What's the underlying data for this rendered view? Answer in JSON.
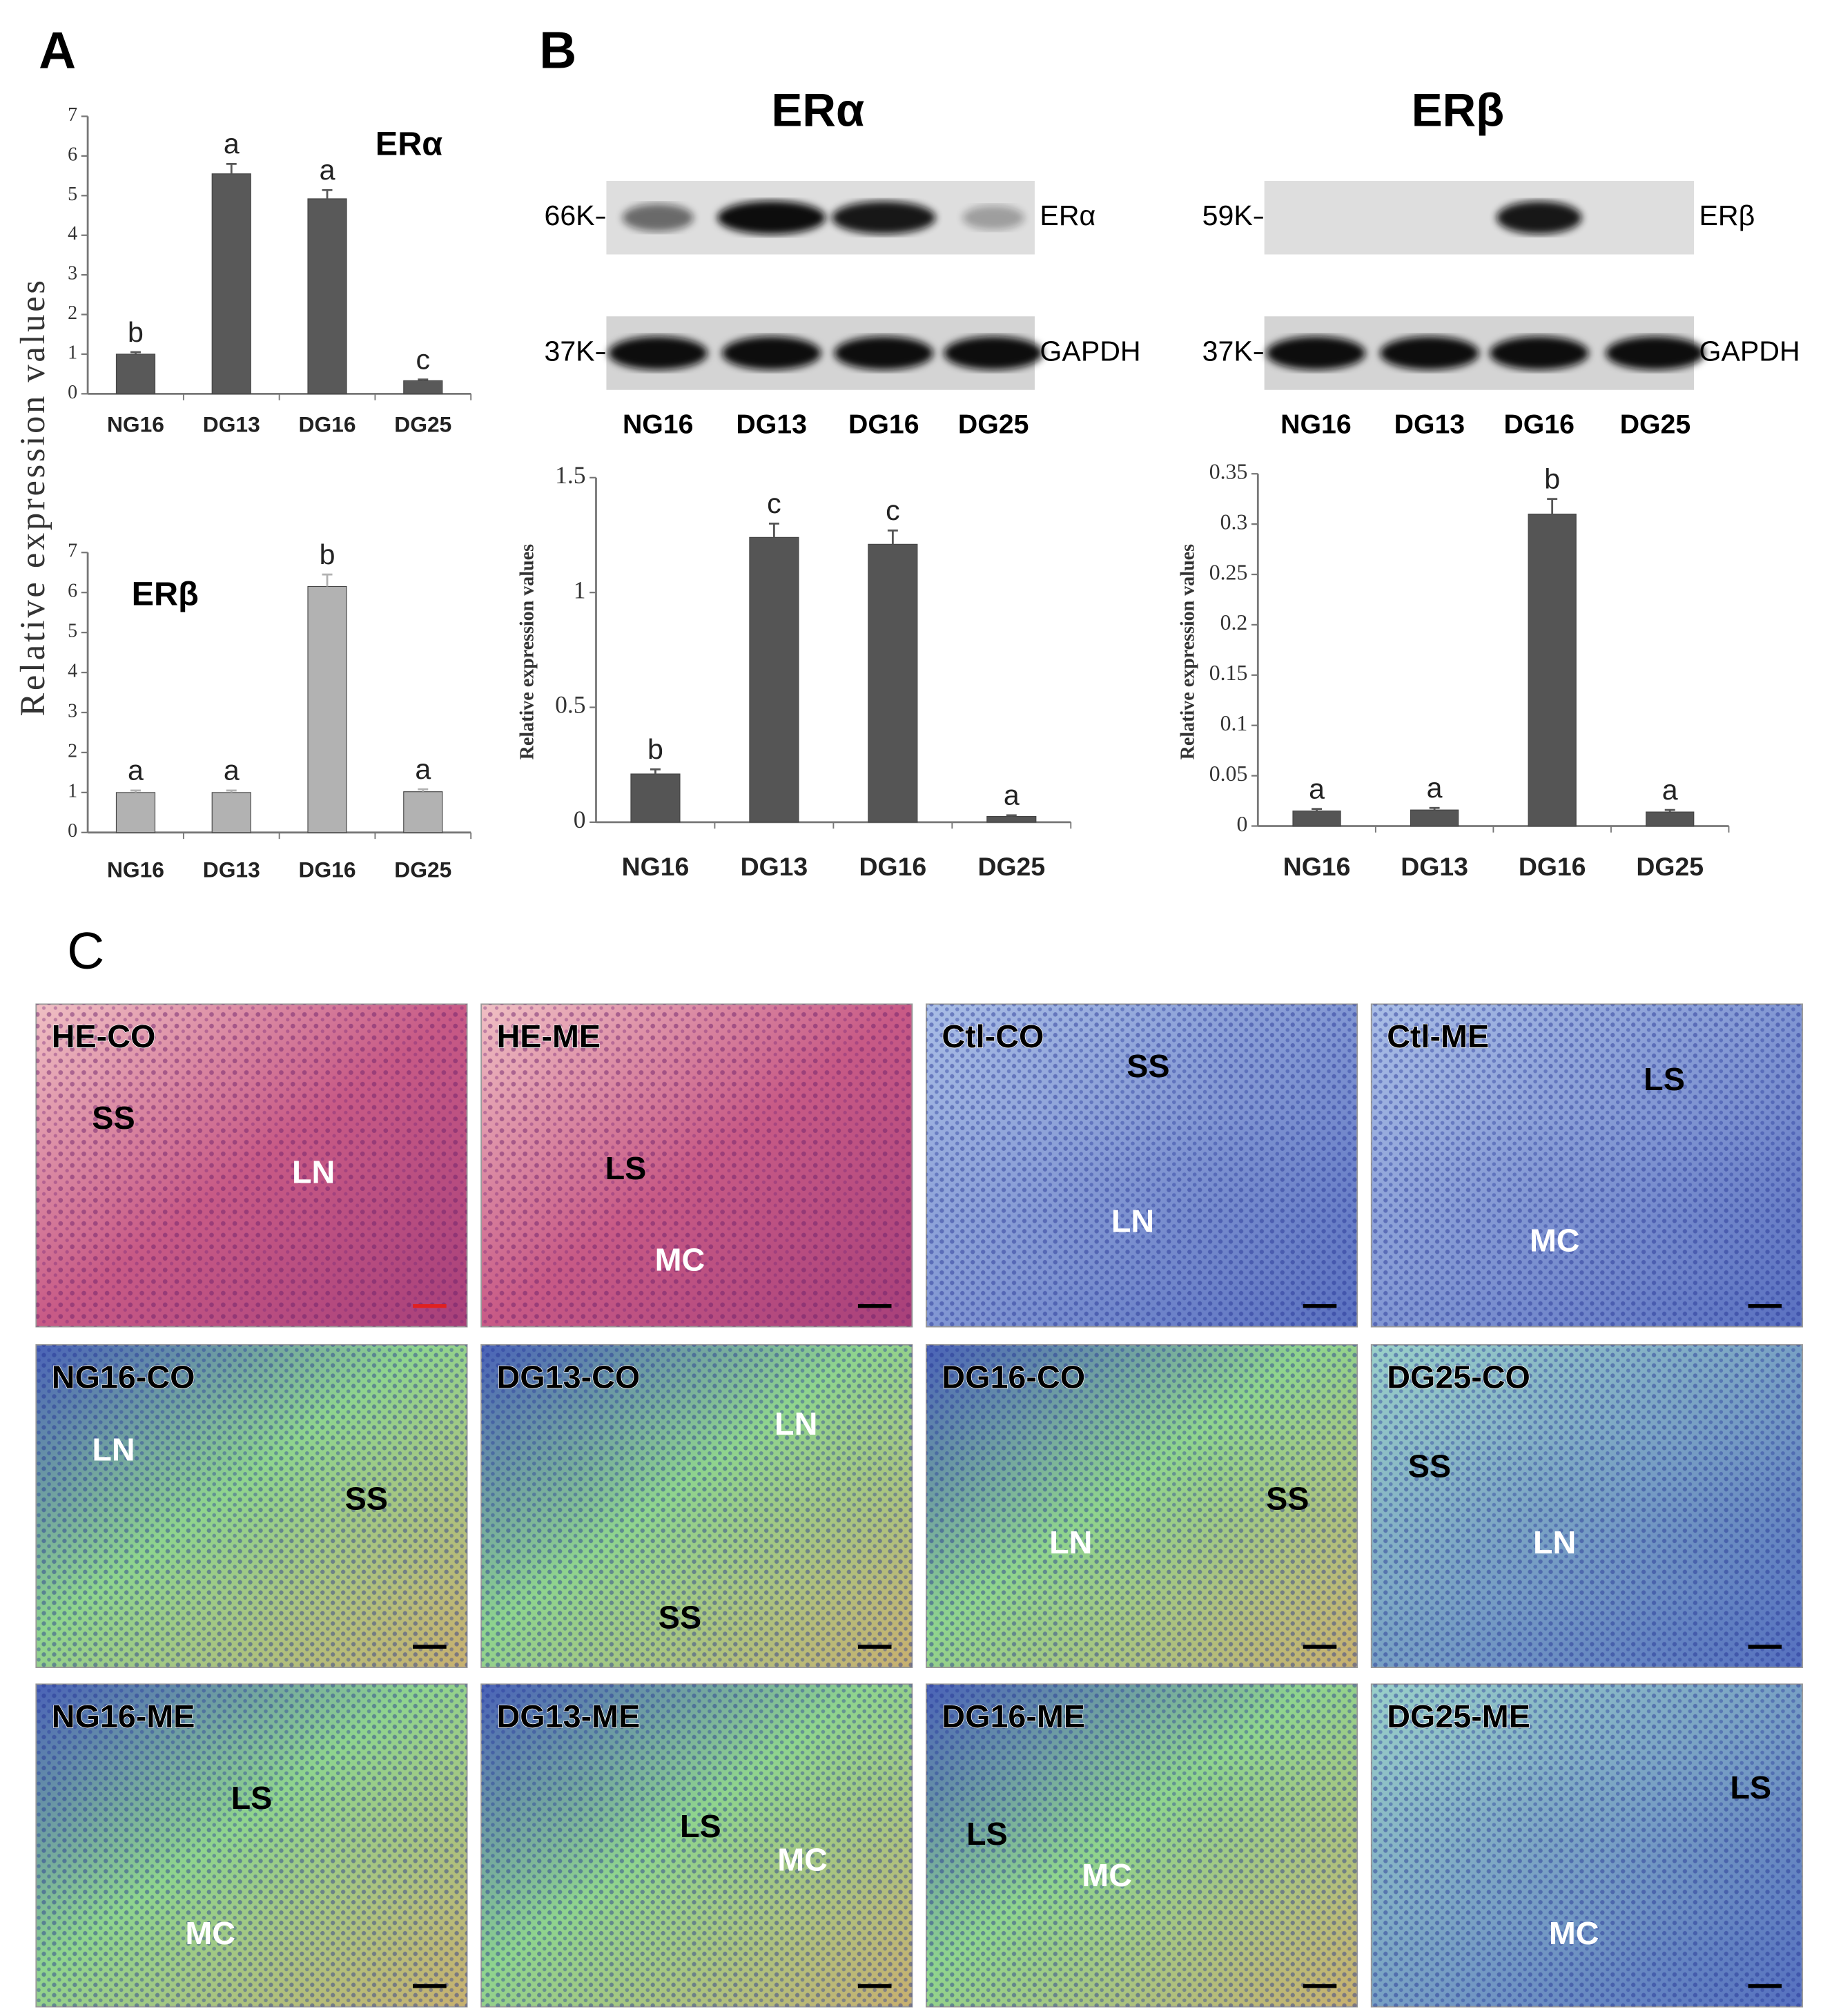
{
  "figure": {
    "panel_labels": [
      "A",
      "B",
      "C"
    ],
    "blots": [
      {
        "title": "ERα",
        "rows": [
          {
            "mw": "66K",
            "name": "ERα"
          },
          {
            "mw": "37K",
            "name": "GAPDH"
          }
        ],
        "lanes": [
          "NG16",
          "DG13",
          "DG16",
          "DG25"
        ]
      },
      {
        "title": "ERβ",
        "rows": [
          {
            "mw": "59K",
            "name": "ERβ"
          },
          {
            "mw": "37K",
            "name": "GAPDH"
          }
        ],
        "lanes": [
          "NG16",
          "DG13",
          "DG16",
          "DG25"
        ]
      }
    ],
    "histology": [
      {
        "label": "HE-CO",
        "regions": [
          "SS",
          "LN"
        ]
      },
      {
        "label": "HE-ME",
        "regions": [
          "LS",
          "MC"
        ]
      },
      {
        "label": "Ctl-CO",
        "regions": [
          "SS",
          "LN"
        ]
      },
      {
        "label": "Ctl-ME",
        "regions": [
          "LS",
          "MC"
        ]
      },
      {
        "label": "NG16-CO",
        "regions": [
          "LN",
          "SS"
        ]
      },
      {
        "label": "DG13-CO",
        "regions": [
          "LN",
          "SS"
        ]
      },
      {
        "label": "DG16-CO",
        "regions": [
          "SS",
          "LN"
        ]
      },
      {
        "label": "DG25-CO",
        "regions": [
          "SS",
          "LN"
        ]
      },
      {
        "label": "NG16-ME",
        "regions": [
          "LS",
          "MC"
        ]
      },
      {
        "label": "DG13-ME",
        "regions": [
          "LS",
          "MC"
        ]
      },
      {
        "label": "DG16-ME",
        "regions": [
          "LS",
          "MC"
        ]
      },
      {
        "label": "DG25-ME",
        "regions": [
          "LS",
          "MC"
        ]
      }
    ]
  },
  "chart_data": [
    {
      "type": "bar",
      "title": "ERα",
      "y_label": "Relative expression values",
      "categories": [
        "NG16",
        "DG13",
        "DG16",
        "DG25"
      ],
      "values": [
        1,
        5.55,
        4.92,
        0.33
      ],
      "errors": [
        0.05,
        0.25,
        0.22,
        0.03
      ],
      "annotations": [
        "b",
        "a",
        "a",
        "c"
      ],
      "color": "#595959",
      "ylim": [
        0,
        7
      ],
      "yticks": [
        0,
        1,
        2,
        3,
        4,
        5,
        6,
        7
      ]
    },
    {
      "type": "bar",
      "title": "ERβ",
      "categories": [
        "NG16",
        "DG13",
        "DG16",
        "DG25"
      ],
      "values": [
        1,
        1,
        6.15,
        1.02
      ],
      "errors": [
        0.05,
        0.05,
        0.3,
        0.06
      ],
      "annotations": [
        "a",
        "a",
        "b",
        "a"
      ],
      "color": "#b2b2b2",
      "ylim": [
        0,
        7
      ],
      "yticks": [
        0,
        1,
        2,
        3,
        4,
        5,
        6,
        7
      ]
    },
    {
      "type": "bar",
      "y_label": "Relative expression values",
      "categories": [
        "NG16",
        "DG13",
        "DG16",
        "DG25"
      ],
      "values": [
        0.21,
        1.24,
        1.21,
        0.025
      ],
      "errors": [
        0.02,
        0.06,
        0.06,
        0.005
      ],
      "annotations": [
        "b",
        "c",
        "c",
        "a"
      ],
      "color": "#555555",
      "ylim": [
        0,
        1.5
      ],
      "yticks": [
        0,
        0.5,
        1,
        1.5
      ]
    },
    {
      "type": "bar",
      "y_label": "Relative expression values",
      "categories": [
        "NG16",
        "DG13",
        "DG16",
        "DG25"
      ],
      "values": [
        0.015,
        0.016,
        0.31,
        0.014
      ],
      "errors": [
        0.002,
        0.002,
        0.015,
        0.002
      ],
      "annotations": [
        "a",
        "a",
        "b",
        "a"
      ],
      "color": "#555555",
      "ylim": [
        0,
        0.35
      ],
      "yticks": [
        0,
        0.05,
        0.1,
        0.15,
        0.2,
        0.25,
        0.3,
        0.35
      ]
    }
  ]
}
